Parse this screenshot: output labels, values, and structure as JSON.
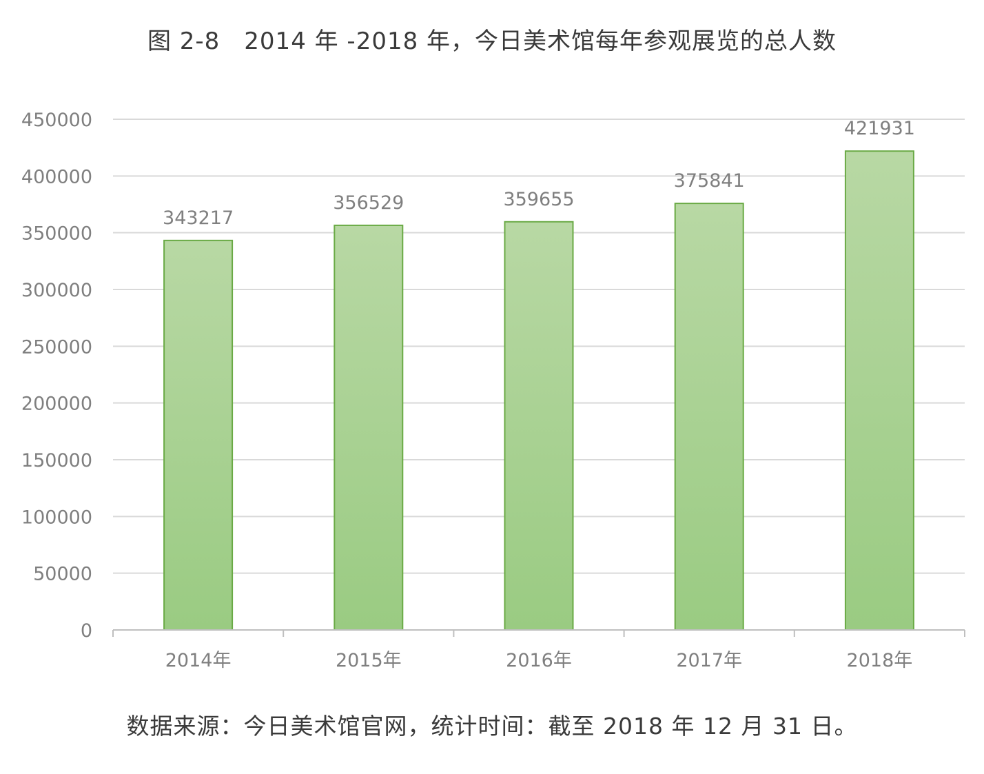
{
  "chart_data": {
    "type": "bar",
    "title": "图 2-8　2014 年 -2018 年，今日美术馆每年参观展览的总人数",
    "categories": [
      "2014年",
      "2015年",
      "2016年",
      "2017年",
      "2018年"
    ],
    "values": [
      343217,
      356529,
      359655,
      375841,
      421931
    ],
    "data_labels": [
      "343217",
      "356529",
      "359655",
      "375841",
      "421931"
    ],
    "y_ticks": [
      "0",
      "50000",
      "100000",
      "150000",
      "200000",
      "250000",
      "300000",
      "350000",
      "400000",
      "450000"
    ],
    "ylim": [
      0,
      450000
    ],
    "xlabel": "",
    "ylabel": "",
    "grid": true,
    "legend": "none",
    "colors": {
      "bar_fill_top": "#b8d8a4",
      "bar_fill_bottom": "#9acb82",
      "bar_stroke": "#6aaa45",
      "grid": "#d9d9d9",
      "axis": "#bfbfbf",
      "tick_text": "#7f7f7f",
      "label_text": "#7f7f7f"
    }
  },
  "source_note": "数据来源：今日美术馆官网，统计时间：截至 2018 年 12 月 31 日。"
}
